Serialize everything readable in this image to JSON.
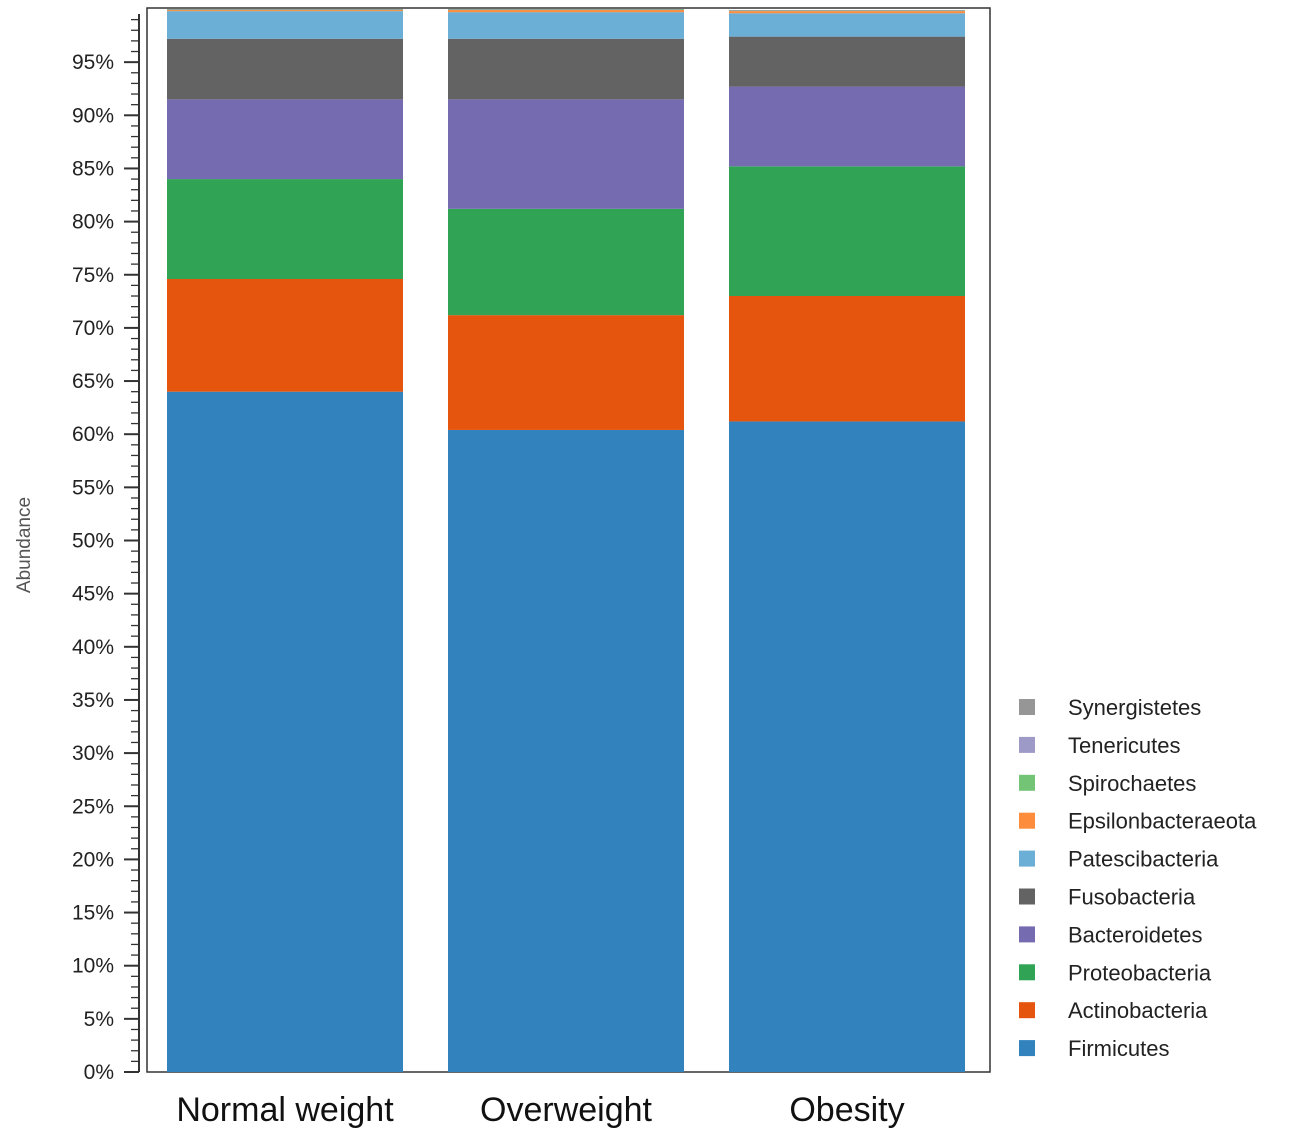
{
  "chart_data": {
    "type": "bar",
    "stacked": true,
    "ylabel": "Abundance",
    "ylim": [
      0,
      100
    ],
    "y_ticks": [
      "0%",
      "5%",
      "10%",
      "15%",
      "20%",
      "25%",
      "30%",
      "35%",
      "40%",
      "45%",
      "50%",
      "55%",
      "60%",
      "65%",
      "70%",
      "75%",
      "80%",
      "85%",
      "90%",
      "95%"
    ],
    "y_tick_values": [
      0,
      5,
      10,
      15,
      20,
      25,
      30,
      35,
      40,
      45,
      50,
      55,
      60,
      65,
      70,
      75,
      80,
      85,
      90,
      95
    ],
    "categories": [
      "Normal weight",
      "Overweight",
      "Obesity"
    ],
    "legend_position": "bottom-right",
    "series": [
      {
        "name": "Firmicutes",
        "color": "#3182bd",
        "values": [
          64.0,
          60.4,
          61.2
        ]
      },
      {
        "name": "Actinobacteria",
        "color": "#e6550d",
        "values": [
          10.6,
          10.8,
          11.8
        ]
      },
      {
        "name": "Proteobacteria",
        "color": "#31a354",
        "values": [
          9.4,
          10.0,
          12.2
        ]
      },
      {
        "name": "Bacteroidetes",
        "color": "#756bb1",
        "values": [
          7.5,
          10.3,
          7.5
        ]
      },
      {
        "name": "Fusobacteria",
        "color": "#636363",
        "values": [
          5.7,
          5.7,
          4.7
        ]
      },
      {
        "name": "Patescibacteria",
        "color": "#6baed6",
        "values": [
          2.6,
          2.5,
          2.2
        ]
      },
      {
        "name": "Epsilonbacteraeota",
        "color": "#fd8d3c",
        "values": [
          0.1,
          0.2,
          0.2
        ]
      },
      {
        "name": "Spirochaetes",
        "color": "#74c476",
        "values": [
          0.05,
          0.05,
          0.05
        ]
      },
      {
        "name": "Tenericutes",
        "color": "#9e9ac8",
        "values": [
          0.03,
          0.03,
          0.03
        ]
      },
      {
        "name": "Synergistetes",
        "color": "#969696",
        "values": [
          0.02,
          0.02,
          0.02
        ]
      }
    ]
  }
}
